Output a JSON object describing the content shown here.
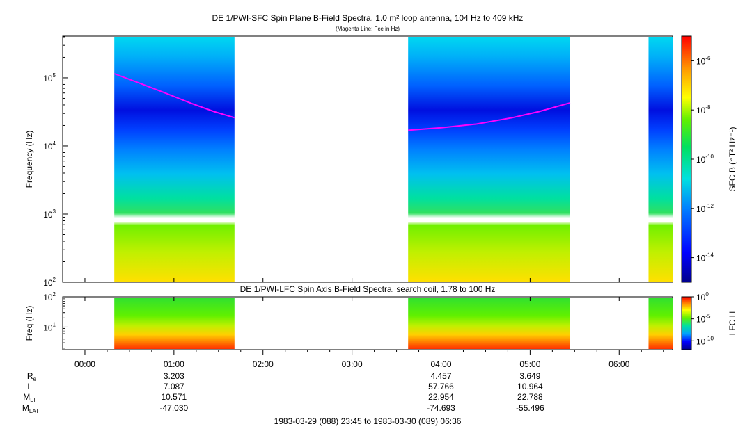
{
  "chart_data": [
    {
      "type": "heatmap",
      "title": "DE 1/PWI-SFC  Spin Plane B-Field Spectra, 1.0 m² loop antenna, 104 Hz to 409 kHz",
      "subtitle": "(Magenta Line: Fce in Hz)",
      "ylabel": "Frequency (Hz)",
      "yscale": "log",
      "ylim": [
        100,
        409000
      ],
      "y_ticks": [
        {
          "base": "10",
          "exp": "2"
        },
        {
          "base": "10",
          "exp": "3"
        },
        {
          "base": "10",
          "exp": "4"
        },
        {
          "base": "10",
          "exp": "5"
        }
      ],
      "colorbar": {
        "label": "SFC B (nT² Hz⁻¹)",
        "scale": "log",
        "range": [
          1e-15,
          1e-05
        ],
        "ticks": [
          {
            "base": "10",
            "exp": "-6"
          },
          {
            "base": "10",
            "exp": "-8"
          },
          {
            "base": "10",
            "exp": "-10"
          },
          {
            "base": "10",
            "exp": "-12"
          },
          {
            "base": "10",
            "exp": "-14"
          }
        ]
      },
      "data_intervals_hours": [
        [
          0.33,
          1.68
        ],
        [
          3.63,
          5.45
        ],
        [
          6.33,
          6.6
        ]
      ],
      "fce_line": {
        "color": "#ff00ff",
        "segments": [
          {
            "t": [
              0.33,
              0.6,
              0.9,
              1.2,
              1.45,
              1.68
            ],
            "f": [
              115000,
              85000,
              60000,
              42000,
              32000,
              26000
            ]
          },
          {
            "t": [
              3.63,
              4.0,
              4.4,
              4.8,
              5.1,
              5.45
            ],
            "f": [
              17000,
              18500,
              21000,
              26000,
              32000,
              43000
            ]
          }
        ]
      }
    },
    {
      "type": "heatmap",
      "title": "DE 1/PWI-LFC  Spin Axis B-Field Spectra, search coil, 1.78 to 100 Hz",
      "ylabel": "Freq (Hz)",
      "yscale": "log",
      "ylim": [
        1.78,
        100
      ],
      "y_ticks": [
        {
          "base": "10",
          "exp": "1"
        },
        {
          "base": "10",
          "exp": "2"
        }
      ],
      "colorbar": {
        "label": "LFC H",
        "scale": "log",
        "range": [
          1e-12,
          1
        ],
        "ticks": [
          {
            "base": "10",
            "exp": "0"
          },
          {
            "base": "10",
            "exp": "-5"
          },
          {
            "base": "10",
            "exp": "-10"
          }
        ]
      },
      "data_intervals_hours": [
        [
          0.33,
          1.68
        ],
        [
          3.63,
          5.45
        ],
        [
          6.33,
          6.6
        ]
      ]
    }
  ],
  "x_axis": {
    "range_hours": [
      -0.25,
      6.6
    ],
    "ticks": [
      {
        "h": 0,
        "label": "00:00"
      },
      {
        "h": 1,
        "label": "01:00"
      },
      {
        "h": 2,
        "label": "02:00"
      },
      {
        "h": 3,
        "label": "03:00"
      },
      {
        "h": 4,
        "label": "04:00"
      },
      {
        "h": 5,
        "label": "05:00"
      },
      {
        "h": 6,
        "label": "06:00"
      }
    ]
  },
  "ephemeris": {
    "labels": {
      "re": "R",
      "re_sub": "e",
      "l": "L",
      "mlt": "M",
      "mlt_sub": "LT",
      "mlat": "M",
      "mlat_sub": "LAT"
    },
    "columns": [
      {
        "time": "01:00",
        "re": "3.203",
        "l": "7.087",
        "mlt": "10.571",
        "mlat": "-47.030"
      },
      {
        "time": "04:00",
        "re": "4.457",
        "l": "57.766",
        "mlt": "22.954",
        "mlat": "-74.693"
      },
      {
        "time": "05:00",
        "re": "3.649",
        "l": "10.964",
        "mlt": "22.788",
        "mlat": "-55.496"
      }
    ]
  },
  "time_range": "1983-03-29 (088) 23:45 to 1983-03-30 (089) 06:36"
}
